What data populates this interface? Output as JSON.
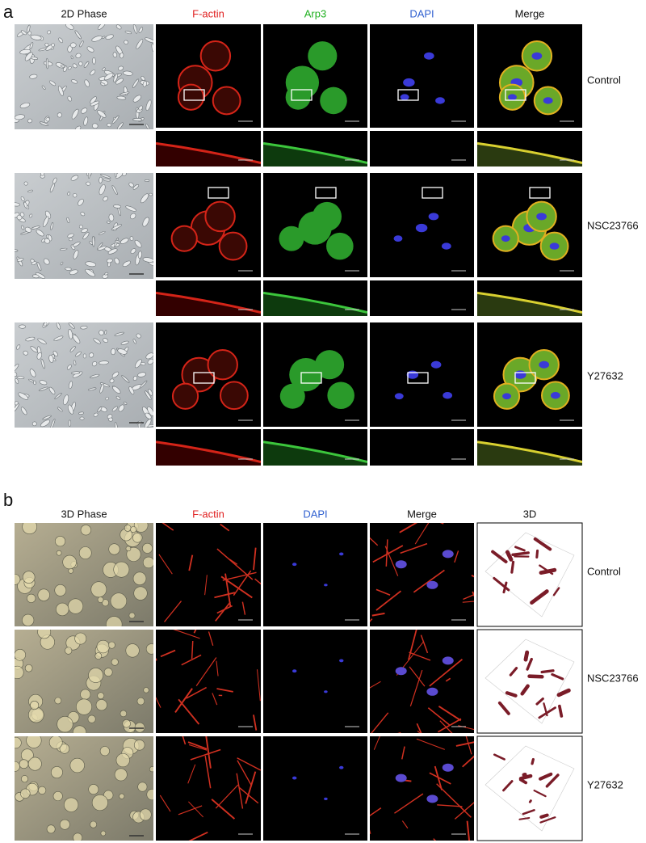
{
  "figure": {
    "panel_a": {
      "label": "a",
      "columns": [
        "2D Phase",
        "F-actin",
        "Arp3",
        "DAPI",
        "Merge"
      ],
      "rows": [
        "Control",
        "NSC23766",
        "Y27632"
      ]
    },
    "panel_b": {
      "label": "b",
      "columns": [
        "3D Phase",
        "F-actin",
        "DAPI",
        "Merge",
        "3D"
      ],
      "rows": [
        "Control",
        "NSC23766",
        "Y27632"
      ]
    }
  }
}
